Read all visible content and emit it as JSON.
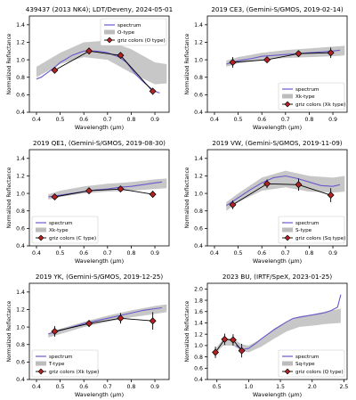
{
  "chart_data": [
    {
      "type": "line",
      "title": "439437 (2013 NK4); LDT/Deveny, 2024-05-01",
      "xlabel": "Wavelength (μm)",
      "ylabel": "Normalized Reflectance",
      "xlim": [
        0.37,
        0.96
      ],
      "ylim": [
        0.4,
        1.5
      ],
      "xticks": [
        "0.4",
        "0.5",
        "0.6",
        "0.7",
        "0.8",
        "0.9"
      ],
      "xtick_values": [
        0.4,
        0.5,
        0.6,
        0.7,
        0.8,
        0.9
      ],
      "yticks": [
        "0.4",
        "0.6",
        "0.8",
        "1.0",
        "1.2",
        "1.4"
      ],
      "ytick_values": [
        0.4,
        0.6,
        0.8,
        1.0,
        1.2,
        1.4
      ],
      "legend": {
        "position": "top-right",
        "entries": [
          "spectrum",
          "O-type",
          "griz colors (O type)"
        ]
      },
      "spectrum": {
        "name": "spectrum",
        "x": [
          0.4,
          0.42,
          0.45,
          0.48,
          0.5,
          0.52,
          0.55,
          0.58,
          0.6,
          0.62,
          0.65,
          0.68,
          0.7,
          0.72,
          0.75,
          0.78,
          0.8,
          0.82,
          0.85,
          0.88,
          0.9,
          0.92
        ],
        "y": [
          0.78,
          0.8,
          0.86,
          0.92,
          0.97,
          1.0,
          1.05,
          1.08,
          1.1,
          1.1,
          1.1,
          1.09,
          1.08,
          1.06,
          1.03,
          0.97,
          0.9,
          0.83,
          0.75,
          0.68,
          0.64,
          0.62
        ]
      },
      "band": {
        "name": "O-type",
        "x": [
          0.4,
          0.5,
          0.6,
          0.7,
          0.8,
          0.9,
          0.95
        ],
        "lower": [
          0.8,
          0.95,
          1.03,
          1.0,
          0.85,
          0.72,
          0.73
        ],
        "upper": [
          0.92,
          1.08,
          1.2,
          1.22,
          1.12,
          0.97,
          0.95
        ]
      },
      "points": {
        "name": "griz colors (O type)",
        "x": [
          0.477,
          0.622,
          0.755,
          0.891
        ],
        "y": [
          0.88,
          1.1,
          1.05,
          0.64
        ],
        "err": [
          0.03,
          0.02,
          0.03,
          0.04
        ]
      }
    },
    {
      "type": "line",
      "title": "2019 CE3, (Gemini-S/GMOS, 2019-02-14)",
      "xlabel": "Wavelength (μm)",
      "ylabel": "Normalized Reflectance",
      "xlim": [
        0.37,
        0.96
      ],
      "ylim": [
        0.4,
        1.5
      ],
      "xticks": [
        "0.4",
        "0.5",
        "0.6",
        "0.7",
        "0.8",
        "0.9"
      ],
      "xtick_values": [
        0.4,
        0.5,
        0.6,
        0.7,
        0.8,
        0.9
      ],
      "yticks": [
        "0.4",
        "0.6",
        "0.8",
        "1.0",
        "1.2",
        "1.4"
      ],
      "ytick_values": [
        0.4,
        0.6,
        0.8,
        1.0,
        1.2,
        1.4
      ],
      "legend": {
        "position": "bottom-right",
        "entries": [
          "spectrum",
          "Xk-type",
          "griz colors (Xk type)"
        ]
      },
      "spectrum": {
        "name": "spectrum",
        "x": [
          0.45,
          0.5,
          0.55,
          0.6,
          0.65,
          0.7,
          0.75,
          0.8,
          0.85,
          0.9,
          0.93
        ],
        "y": [
          0.95,
          0.99,
          1.01,
          1.04,
          1.05,
          1.06,
          1.07,
          1.08,
          1.09,
          1.1,
          1.11
        ]
      },
      "band": {
        "name": "Xk-type",
        "x": [
          0.45,
          0.5,
          0.6,
          0.7,
          0.8,
          0.9,
          0.95
        ],
        "lower": [
          0.92,
          0.96,
          1.0,
          1.02,
          1.03,
          1.04,
          1.05
        ],
        "upper": [
          0.99,
          1.03,
          1.08,
          1.11,
          1.13,
          1.15,
          1.16
        ]
      },
      "points": {
        "name": "griz colors (Xk type)",
        "x": [
          0.477,
          0.622,
          0.755,
          0.891
        ],
        "y": [
          0.97,
          1.0,
          1.07,
          1.08
        ],
        "err": [
          0.06,
          0.03,
          0.03,
          0.06
        ]
      }
    },
    {
      "type": "line",
      "title": "2019 QE1, (Gemini-S/GMOS, 2019-08-30)",
      "xlabel": "Wavelength (μm)",
      "ylabel": "Normalized Reflectance",
      "xlim": [
        0.37,
        0.96
      ],
      "ylim": [
        0.4,
        1.5
      ],
      "xticks": [
        "0.4",
        "0.5",
        "0.6",
        "0.7",
        "0.8",
        "0.9"
      ],
      "xtick_values": [
        0.4,
        0.5,
        0.6,
        0.7,
        0.8,
        0.9
      ],
      "yticks": [
        "0.4",
        "0.6",
        "0.8",
        "1.0",
        "1.2",
        "1.4"
      ],
      "ytick_values": [
        0.4,
        0.6,
        0.8,
        1.0,
        1.2,
        1.4
      ],
      "legend": {
        "position": "bottom-left",
        "entries": [
          "spectrum",
          "Xk-type",
          "griz colors (C type)"
        ]
      },
      "spectrum": {
        "name": "spectrum",
        "x": [
          0.45,
          0.5,
          0.55,
          0.6,
          0.65,
          0.7,
          0.75,
          0.8,
          0.85,
          0.9,
          0.93
        ],
        "y": [
          0.96,
          0.98,
          1.0,
          1.02,
          1.04,
          1.05,
          1.07,
          1.08,
          1.1,
          1.12,
          1.13
        ]
      },
      "band": {
        "name": "Xk-type",
        "x": [
          0.45,
          0.5,
          0.6,
          0.7,
          0.8,
          0.9,
          0.95
        ],
        "lower": [
          0.93,
          0.96,
          1.0,
          1.02,
          1.03,
          1.05,
          1.06
        ],
        "upper": [
          0.99,
          1.03,
          1.08,
          1.11,
          1.13,
          1.16,
          1.17
        ]
      },
      "points": {
        "name": "griz colors (C type)",
        "x": [
          0.477,
          0.622,
          0.755,
          0.891
        ],
        "y": [
          0.96,
          1.03,
          1.05,
          0.99
        ],
        "err": [
          0.02,
          0.02,
          0.02,
          0.04
        ]
      }
    },
    {
      "type": "line",
      "title": "2019 VW, (Gemini-S/GMOS, 2019-11-09)",
      "xlabel": "Wavelength (μm)",
      "ylabel": "Normalized Reflectance",
      "xlim": [
        0.37,
        0.96
      ],
      "ylim": [
        0.4,
        1.5
      ],
      "xticks": [
        "0.4",
        "0.5",
        "0.6",
        "0.7",
        "0.8",
        "0.9"
      ],
      "xtick_values": [
        0.4,
        0.5,
        0.6,
        0.7,
        0.8,
        0.9
      ],
      "yticks": [
        "0.4",
        "0.6",
        "0.8",
        "1.0",
        "1.2",
        "1.4"
      ],
      "ytick_values": [
        0.4,
        0.6,
        0.8,
        1.0,
        1.2,
        1.4
      ],
      "legend": {
        "position": "bottom-right",
        "entries": [
          "spectrum",
          "S-type",
          "griz colors (Sq type)"
        ]
      },
      "spectrum": {
        "name": "spectrum",
        "x": [
          0.45,
          0.5,
          0.55,
          0.6,
          0.65,
          0.7,
          0.75,
          0.8,
          0.85,
          0.9,
          0.93
        ],
        "y": [
          0.86,
          0.95,
          1.04,
          1.12,
          1.18,
          1.2,
          1.17,
          1.13,
          1.09,
          1.08,
          1.1
        ]
      },
      "band": {
        "name": "S-type",
        "x": [
          0.45,
          0.5,
          0.6,
          0.7,
          0.8,
          0.9,
          0.95
        ],
        "lower": [
          0.8,
          0.9,
          1.03,
          1.07,
          1.02,
          1.01,
          1.02
        ],
        "upper": [
          0.9,
          1.0,
          1.18,
          1.26,
          1.2,
          1.18,
          1.2
        ]
      },
      "points": {
        "name": "griz colors (Sq type)",
        "x": [
          0.477,
          0.622,
          0.755,
          0.891
        ],
        "y": [
          0.87,
          1.11,
          1.1,
          0.98
        ],
        "err": [
          0.05,
          0.05,
          0.07,
          0.08
        ]
      }
    },
    {
      "type": "line",
      "title": "2019 YK, (Gemini-S/GMOS, 2019-12-25)",
      "xlabel": "Wavelength (μm)",
      "ylabel": "Normalized Reflectance",
      "xlim": [
        0.37,
        0.96
      ],
      "ylim": [
        0.4,
        1.5
      ],
      "xticks": [
        "0.4",
        "0.5",
        "0.6",
        "0.7",
        "0.8",
        "0.9"
      ],
      "xtick_values": [
        0.4,
        0.5,
        0.6,
        0.7,
        0.8,
        0.9
      ],
      "yticks": [
        "0.4",
        "0.6",
        "0.8",
        "1.0",
        "1.2",
        "1.4"
      ],
      "ytick_values": [
        0.4,
        0.6,
        0.8,
        1.0,
        1.2,
        1.4
      ],
      "legend": {
        "position": "bottom-left",
        "entries": [
          "spectrum",
          "T-type",
          "griz colors (Xk type)"
        ]
      },
      "spectrum": {
        "name": "spectrum",
        "x": [
          0.45,
          0.5,
          0.55,
          0.6,
          0.65,
          0.7,
          0.75,
          0.8,
          0.85,
          0.9,
          0.93
        ],
        "y": [
          0.92,
          0.96,
          1.0,
          1.04,
          1.07,
          1.1,
          1.13,
          1.16,
          1.19,
          1.21,
          1.22
        ]
      },
      "band": {
        "name": "T-type",
        "x": [
          0.45,
          0.5,
          0.6,
          0.7,
          0.8,
          0.9,
          0.95
        ],
        "lower": [
          0.88,
          0.92,
          1.0,
          1.06,
          1.11,
          1.15,
          1.17
        ],
        "upper": [
          0.93,
          0.98,
          1.06,
          1.13,
          1.19,
          1.24,
          1.26
        ]
      },
      "points": {
        "name": "griz colors (Xk type)",
        "x": [
          0.477,
          0.622,
          0.755,
          0.891
        ],
        "y": [
          0.95,
          1.04,
          1.1,
          1.07
        ],
        "err": [
          0.06,
          0.04,
          0.06,
          0.1
        ]
      }
    },
    {
      "type": "line",
      "title": "2023 BU, (IRTF/SpeX, 2023-01-25)",
      "xlabel": "Wavelength (μm)",
      "ylabel": "Normalized Reflectance",
      "xlim": [
        0.35,
        2.55
      ],
      "ylim": [
        0.4,
        2.1
      ],
      "xticks": [
        "0.5",
        "1.0",
        "1.5",
        "2.0",
        "2.5"
      ],
      "xtick_values": [
        0.5,
        1.0,
        1.5,
        2.0,
        2.5
      ],
      "yticks": [
        "0.4",
        "0.6",
        "0.8",
        "1.0",
        "1.2",
        "1.4",
        "1.6",
        "1.8",
        "2.0"
      ],
      "ytick_values": [
        0.4,
        0.6,
        0.8,
        1.0,
        1.2,
        1.4,
        1.6,
        1.8,
        2.0
      ],
      "legend": {
        "position": "bottom-right",
        "entries": [
          "spectrum",
          "Sq-type",
          "griz colors (Q type)"
        ]
      },
      "spectrum": {
        "name": "spectrum",
        "x": [
          0.8,
          0.9,
          1.0,
          1.1,
          1.2,
          1.3,
          1.4,
          1.5,
          1.6,
          1.7,
          1.8,
          1.9,
          2.0,
          2.1,
          2.2,
          2.3,
          2.4,
          2.45
        ],
        "y": [
          1.0,
          0.93,
          0.95,
          1.03,
          1.12,
          1.2,
          1.28,
          1.35,
          1.42,
          1.48,
          1.5,
          1.52,
          1.54,
          1.56,
          1.58,
          1.62,
          1.68,
          1.9
        ]
      },
      "band": {
        "name": "Sq-type",
        "x": [
          0.45,
          0.6,
          0.75,
          0.9,
          1.0,
          1.2,
          1.4,
          1.6,
          1.8,
          2.0,
          2.2,
          2.45
        ],
        "lower": [
          0.82,
          1.0,
          1.0,
          0.9,
          0.88,
          0.98,
          1.12,
          1.25,
          1.33,
          1.35,
          1.38,
          1.4
        ],
        "upper": [
          0.9,
          1.12,
          1.12,
          1.02,
          1.0,
          1.12,
          1.3,
          1.43,
          1.52,
          1.55,
          1.6,
          1.65
        ]
      },
      "points": {
        "name": "griz colors (Q type)",
        "x": [
          0.477,
          0.622,
          0.755,
          0.891
        ],
        "y": [
          0.88,
          1.11,
          1.1,
          0.91
        ],
        "err": [
          0.1,
          0.1,
          0.1,
          0.12
        ]
      }
    }
  ]
}
